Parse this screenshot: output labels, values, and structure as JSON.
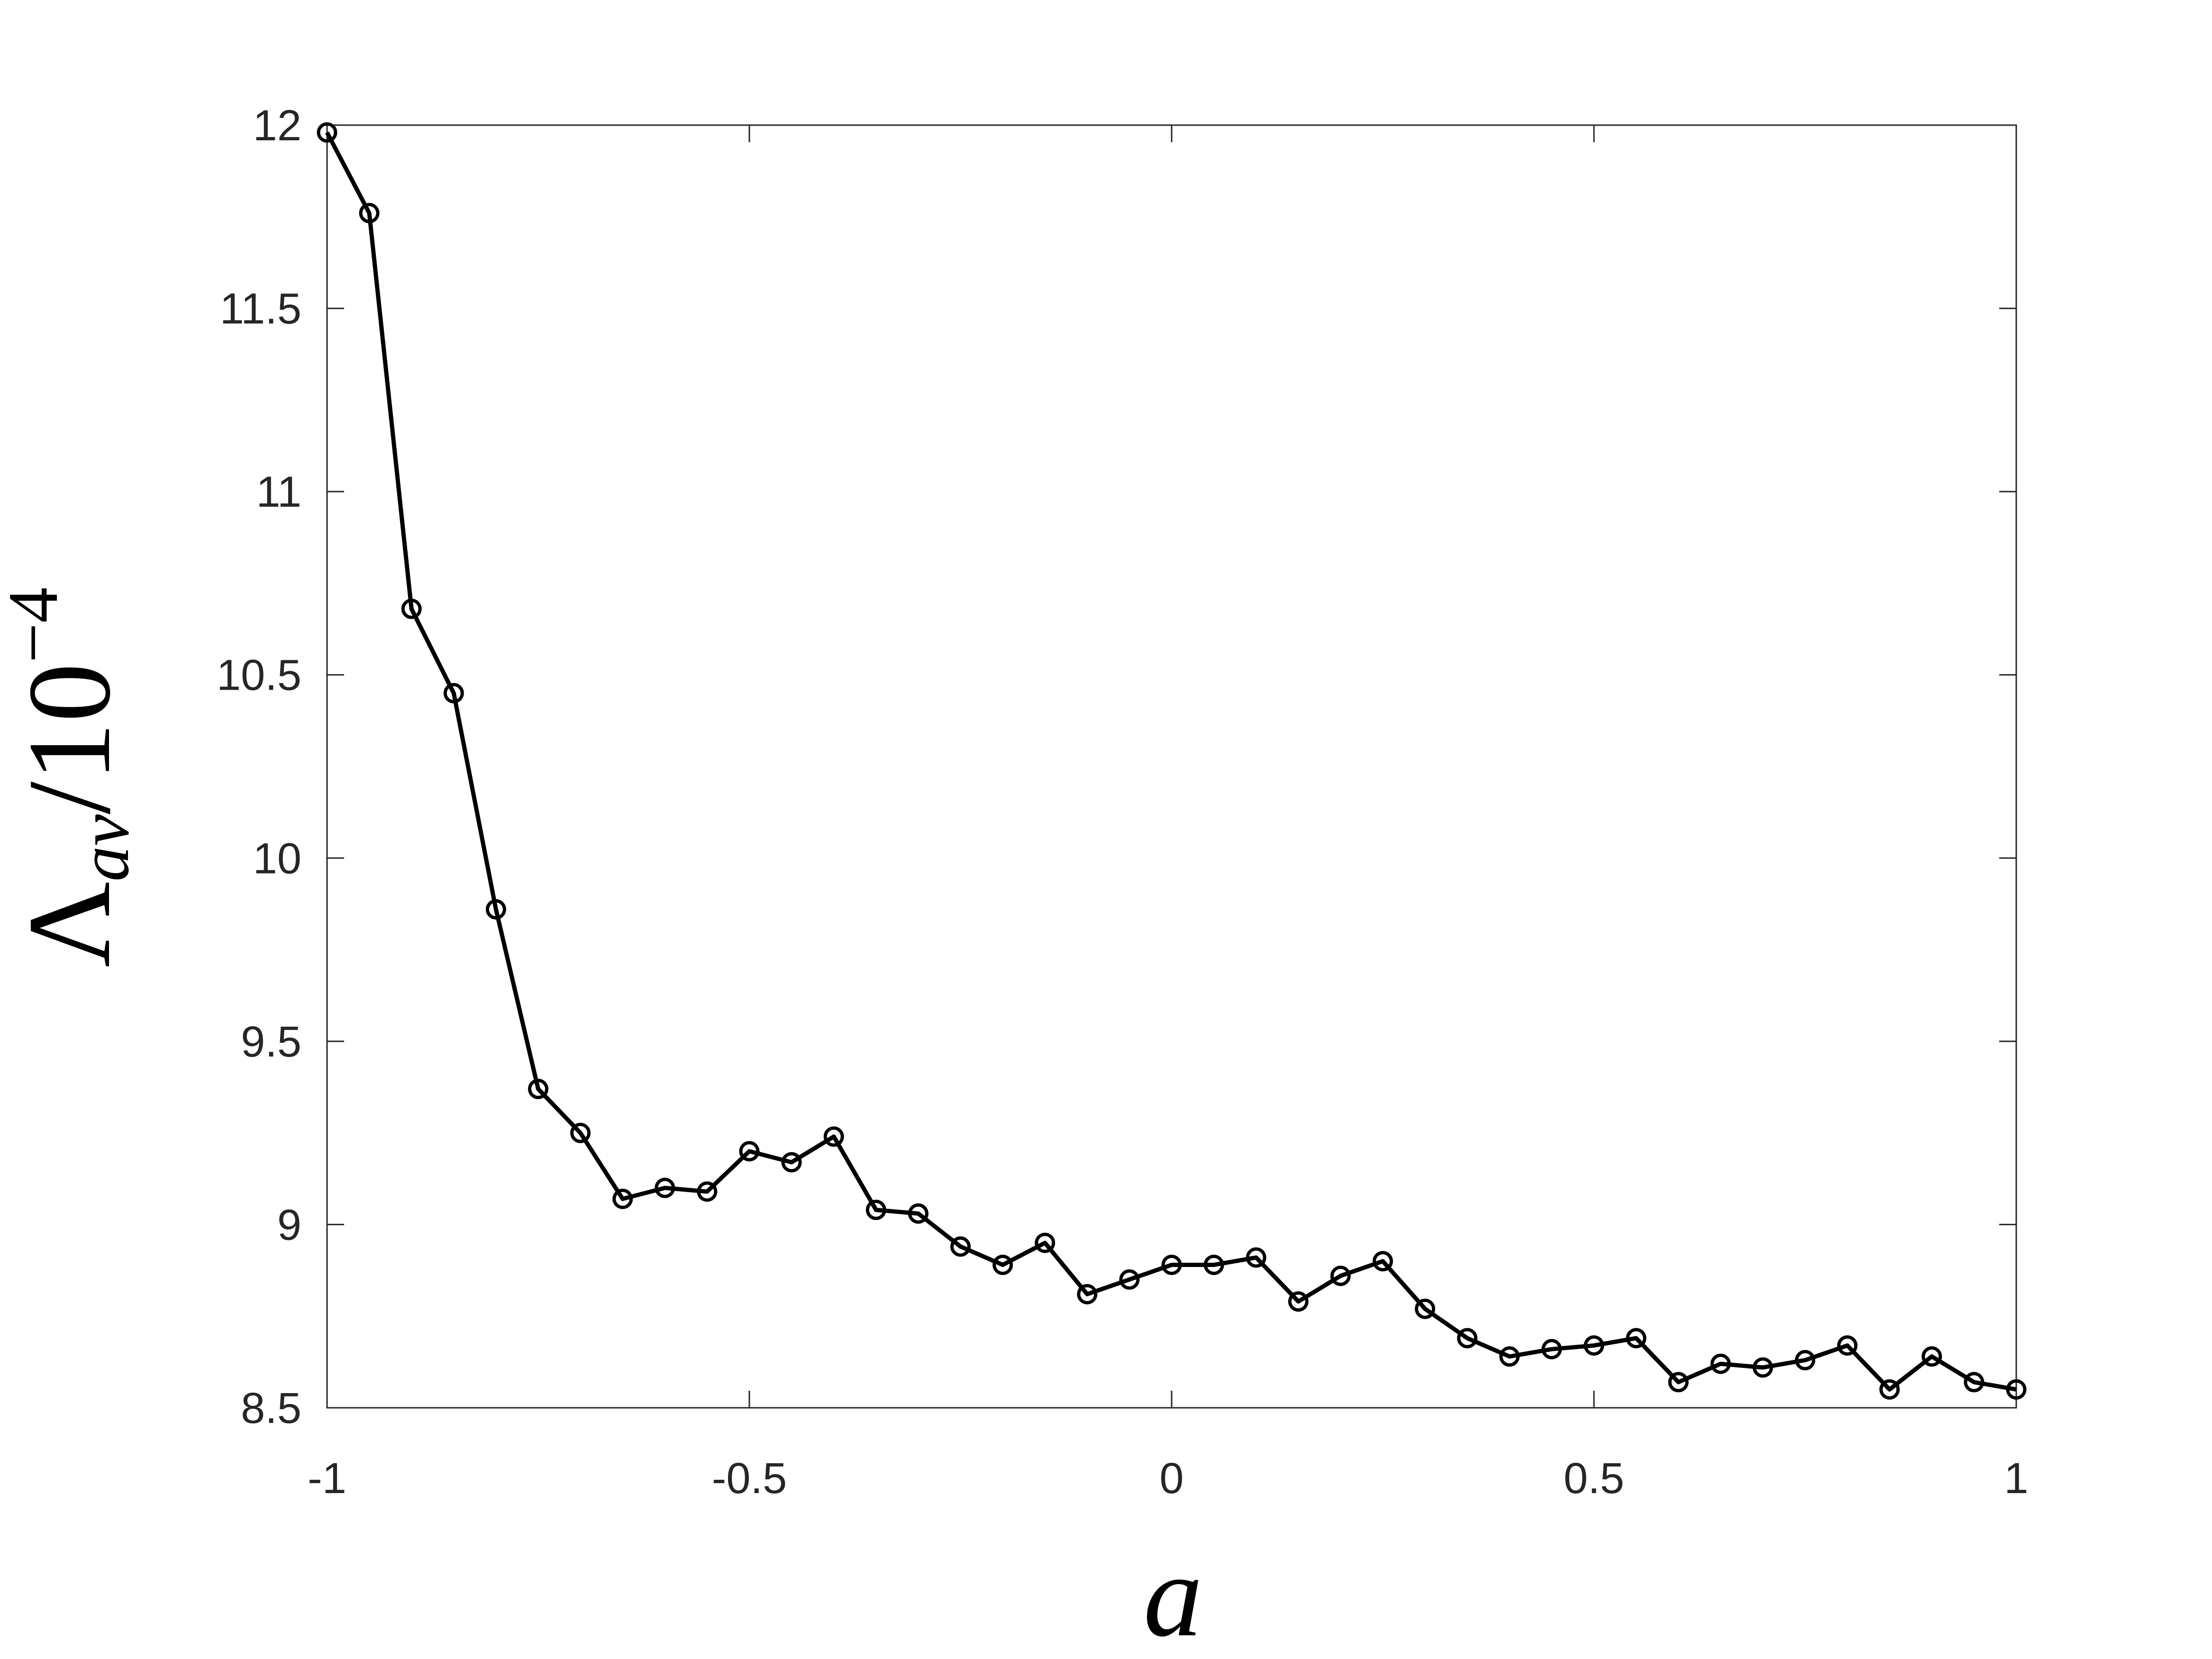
{
  "chart_data": {
    "type": "line",
    "xlabel": "a",
    "ylabel": {
      "base": "Λ",
      "sub": "av",
      "mid": "/10",
      "sup": "−4"
    },
    "x": [
      -1,
      -0.95,
      -0.9,
      -0.85,
      -0.8,
      -0.75,
      -0.7,
      -0.65,
      -0.6,
      -0.55,
      -0.5,
      -0.45,
      -0.4,
      -0.35,
      -0.3,
      -0.25,
      -0.2,
      -0.15,
      -0.1,
      -0.05,
      0,
      0.05,
      0.1,
      0.15,
      0.2,
      0.25,
      0.3,
      0.35,
      0.4,
      0.45,
      0.5,
      0.55,
      0.6,
      0.65,
      0.7,
      0.75,
      0.8,
      0.85,
      0.9,
      0.95,
      1
    ],
    "values": [
      11.98,
      11.76,
      10.68,
      10.45,
      9.86,
      9.37,
      9.25,
      9.07,
      9.1,
      9.09,
      9.2,
      9.17,
      9.24,
      9.04,
      9.03,
      8.94,
      8.89,
      8.95,
      8.81,
      8.85,
      8.89,
      8.89,
      8.91,
      8.79,
      8.86,
      8.9,
      8.77,
      8.69,
      8.64,
      8.66,
      8.67,
      8.69,
      8.57,
      8.62,
      8.61,
      8.63,
      8.67,
      8.55,
      8.64,
      8.57,
      8.55
    ],
    "color": "#000000",
    "xlim": [
      -1,
      1
    ],
    "xticks": [
      -1,
      -0.5,
      0,
      0.5,
      1
    ],
    "ylim": [
      8.5,
      12
    ],
    "yticks": [
      8.5,
      9,
      9.5,
      10,
      10.5,
      11,
      11.5,
      12
    ]
  }
}
